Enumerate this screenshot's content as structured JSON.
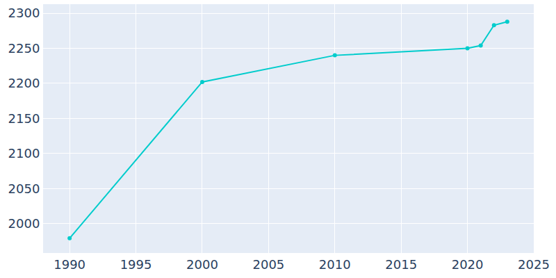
{
  "chart_data": {
    "type": "line",
    "x": [
      1990,
      2000,
      2010,
      2020,
      2021,
      2022,
      2023
    ],
    "values": [
      1979,
      2202,
      2240,
      2250,
      2254,
      2283,
      2288
    ],
    "color": "#00cccc",
    "marker": "circle",
    "xlim": [
      1988,
      2025
    ],
    "xticks": [
      1990,
      1995,
      2000,
      2005,
      2010,
      2015,
      2020,
      2025
    ],
    "ylim": [
      1958,
      2313
    ],
    "yticks": [
      2000,
      2050,
      2100,
      2150,
      2200,
      2250,
      2300
    ],
    "grid": true
  }
}
